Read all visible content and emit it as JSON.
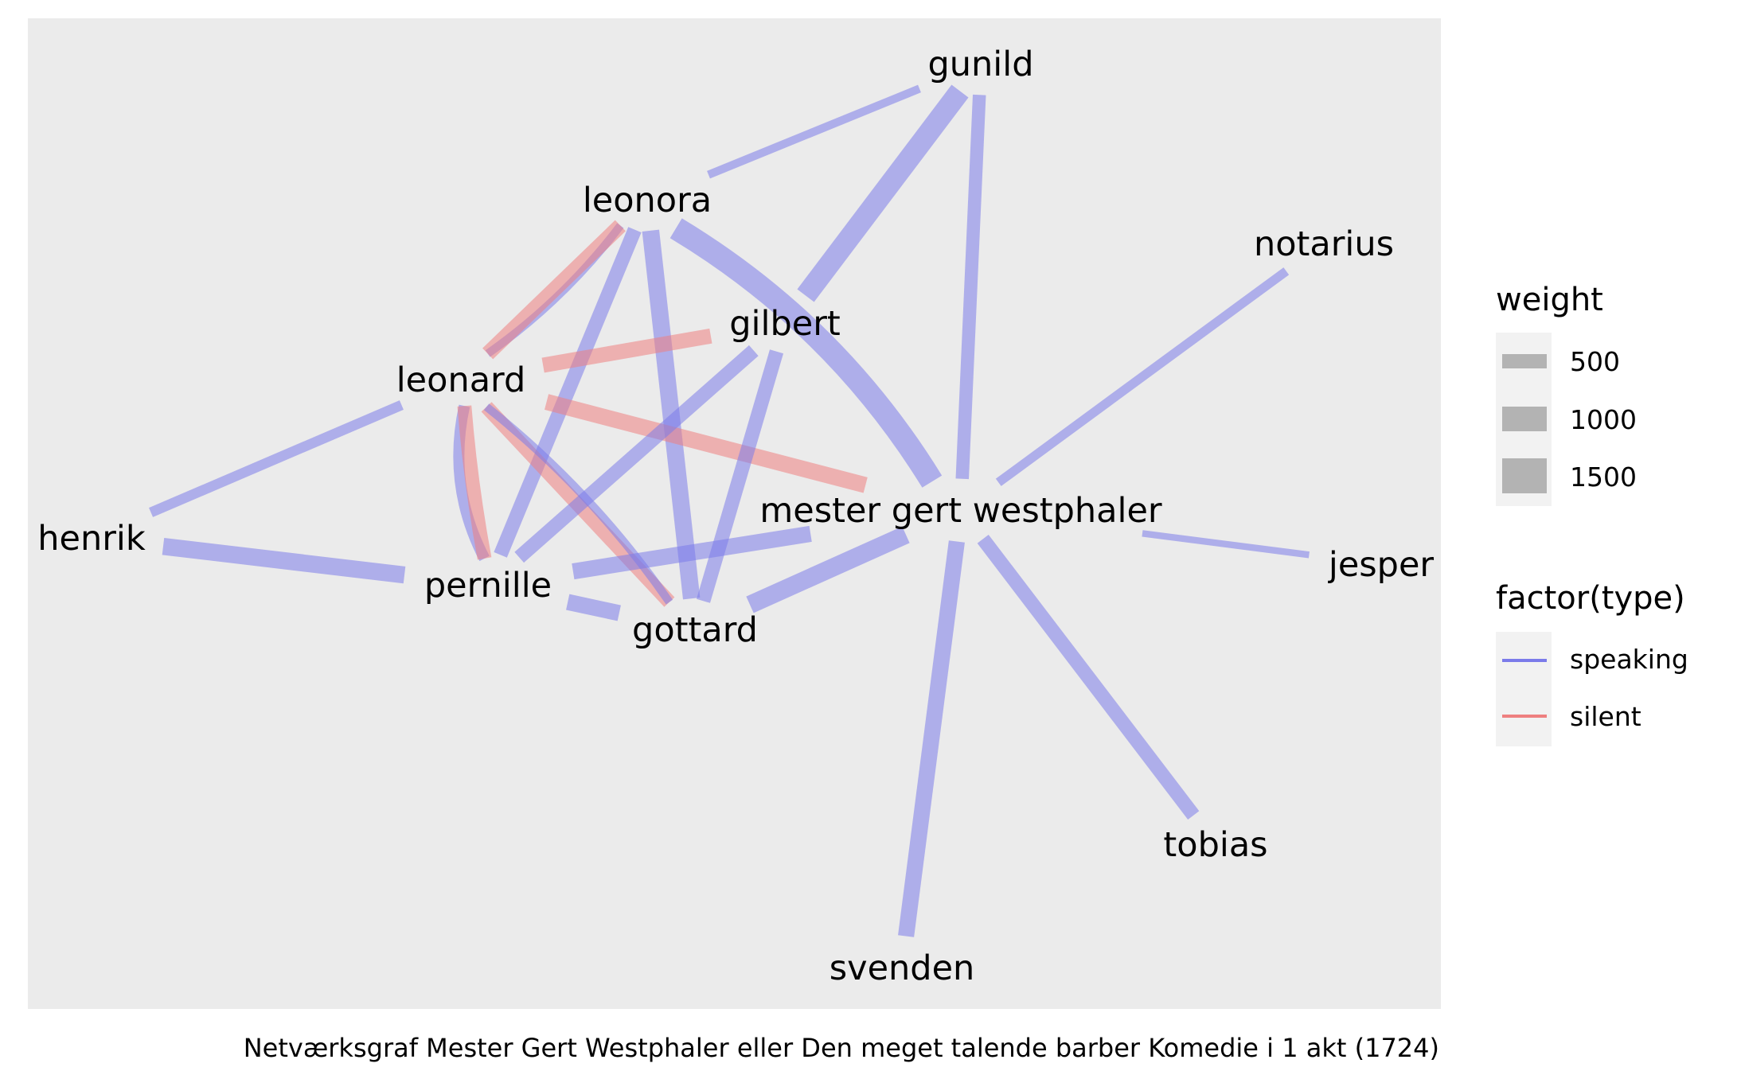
{
  "colors": {
    "panel_background": "#ebebeb",
    "speaking": "#7b7bea",
    "silent": "#ee8080",
    "legend_key_background": "#f2f2f2",
    "legend_weight_swatch": "#b3b3b3"
  },
  "nodes": [
    {
      "id": "gunild",
      "label": "gunild"
    },
    {
      "id": "leonora",
      "label": "leonora"
    },
    {
      "id": "notarius",
      "label": "notarius"
    },
    {
      "id": "gilbert",
      "label": "gilbert"
    },
    {
      "id": "leonard",
      "label": "leonard"
    },
    {
      "id": "mester",
      "label": "mester gert westphaler"
    },
    {
      "id": "henrik",
      "label": "henrik"
    },
    {
      "id": "jesper",
      "label": "jesper"
    },
    {
      "id": "pernille",
      "label": "pernille"
    },
    {
      "id": "gottard",
      "label": "gottard"
    },
    {
      "id": "tobias",
      "label": "tobias"
    },
    {
      "id": "svenden",
      "label": "svenden"
    }
  ],
  "edges": [
    {
      "source": "leonora",
      "target": "gunild",
      "type": "speaking",
      "weight": 500
    },
    {
      "source": "gilbert",
      "target": "gunild",
      "type": "speaking",
      "weight": 1800
    },
    {
      "source": "mester",
      "target": "gunild",
      "type": "speaking",
      "weight": 1000
    },
    {
      "source": "mester",
      "target": "notarius",
      "type": "speaking",
      "weight": 600
    },
    {
      "source": "mester",
      "target": "jesper",
      "type": "speaking",
      "weight": 350
    },
    {
      "source": "mester",
      "target": "tobias",
      "type": "speaking",
      "weight": 1100
    },
    {
      "source": "mester",
      "target": "svenden",
      "type": "speaking",
      "weight": 1300
    },
    {
      "source": "leonora",
      "target": "mester",
      "type": "speaking",
      "weight": 2000
    },
    {
      "source": "leonora",
      "target": "leonard",
      "type": "speaking",
      "weight": 500
    },
    {
      "source": "leonora",
      "target": "leonard",
      "type": "silent",
      "weight": 1200
    },
    {
      "source": "leonora",
      "target": "pernille",
      "type": "speaking",
      "weight": 1100
    },
    {
      "source": "leonora",
      "target": "gottard",
      "type": "speaking",
      "weight": 1400
    },
    {
      "source": "leonard",
      "target": "gilbert",
      "type": "silent",
      "weight": 1200
    },
    {
      "source": "leonard",
      "target": "mester",
      "type": "silent",
      "weight": 1300
    },
    {
      "source": "leonard",
      "target": "henrik",
      "type": "speaking",
      "weight": 700
    },
    {
      "source": "leonard",
      "target": "pernille",
      "type": "speaking",
      "weight": 800
    },
    {
      "source": "leonard",
      "target": "pernille",
      "type": "silent",
      "weight": 1100
    },
    {
      "source": "leonard",
      "target": "gottard",
      "type": "silent",
      "weight": 1100
    },
    {
      "source": "leonard",
      "target": "gottard",
      "type": "speaking",
      "weight": 500
    },
    {
      "source": "gilbert",
      "target": "pernille",
      "type": "speaking",
      "weight": 1100
    },
    {
      "source": "gilbert",
      "target": "gottard",
      "type": "speaking",
      "weight": 1100
    },
    {
      "source": "henrik",
      "target": "pernille",
      "type": "speaking",
      "weight": 1400
    },
    {
      "source": "pernille",
      "target": "mester",
      "type": "speaking",
      "weight": 1300
    },
    {
      "source": "pernille",
      "target": "gottard",
      "type": "speaking",
      "weight": 1300
    },
    {
      "source": "gottard",
      "target": "mester",
      "type": "speaking",
      "weight": 1500
    }
  ],
  "legend": {
    "weight_title": "weight",
    "weight_items": [
      {
        "label": "500",
        "value": 500
      },
      {
        "label": "1000",
        "value": 1000
      },
      {
        "label": "1500",
        "value": 1500
      }
    ],
    "type_title": "factor(type)",
    "type_items": [
      {
        "label": "speaking",
        "key": "speaking"
      },
      {
        "label": "silent",
        "key": "silent"
      }
    ]
  },
  "caption": "Netværksgraf Mester Gert Westphaler eller Den meget talende barber Komedie i 1 akt (1724)"
}
